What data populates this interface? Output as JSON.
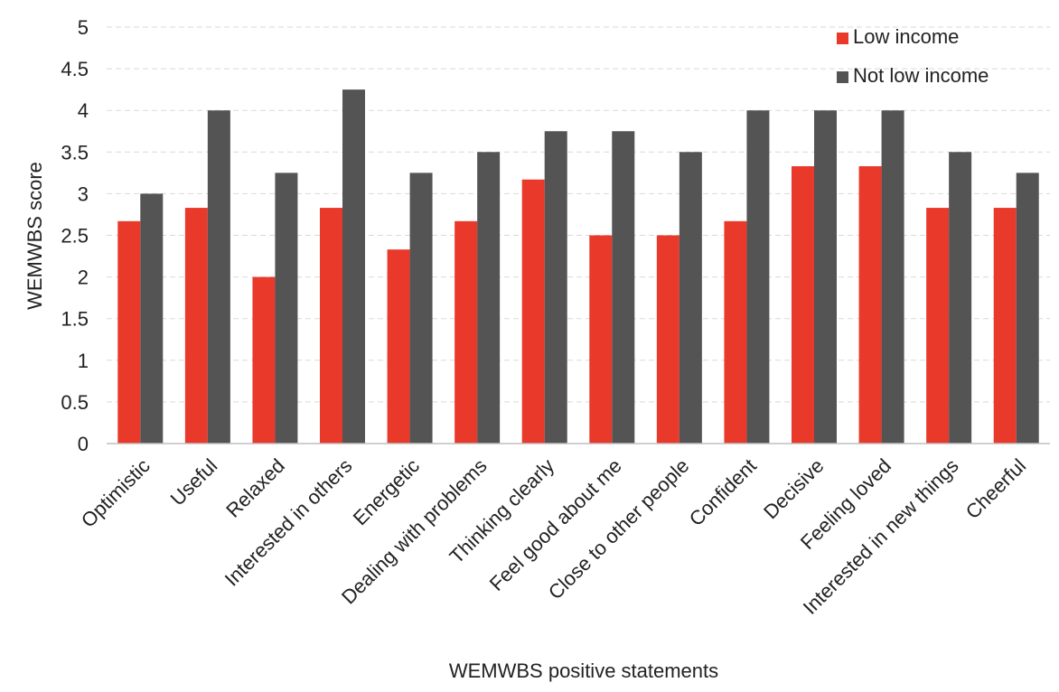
{
  "chart_data": {
    "type": "bar",
    "xlabel": "WEMWBS positive statements",
    "ylabel": "WEMWBS score",
    "ylim": [
      0,
      5
    ],
    "yticks": [
      "0",
      "0.5",
      "1",
      "1.5",
      "2",
      "2.5",
      "3",
      "3.5",
      "4",
      "4.5",
      "5"
    ],
    "grid": true,
    "legend_position": "top-right",
    "categories": [
      "Optimistic",
      "Useful",
      "Relaxed",
      "Interested in others",
      "Energetic",
      "Dealing with problems",
      "Thinking clearly",
      "Feel good about me",
      "Close to other people",
      "Confident",
      "Decisive",
      "Feeling loved",
      "Interested in new things",
      "Cheerful"
    ],
    "series": [
      {
        "name": "Low income",
        "color": "#e8392a",
        "values": [
          2.67,
          2.83,
          2.0,
          2.83,
          2.33,
          2.67,
          3.17,
          2.5,
          2.5,
          2.67,
          3.33,
          3.33,
          2.83,
          2.83
        ]
      },
      {
        "name": "Not low income",
        "color": "#545454",
        "values": [
          3.0,
          4.0,
          3.25,
          4.25,
          3.25,
          3.5,
          3.75,
          3.75,
          3.5,
          4.0,
          4.0,
          4.0,
          3.5,
          3.25
        ]
      }
    ]
  }
}
